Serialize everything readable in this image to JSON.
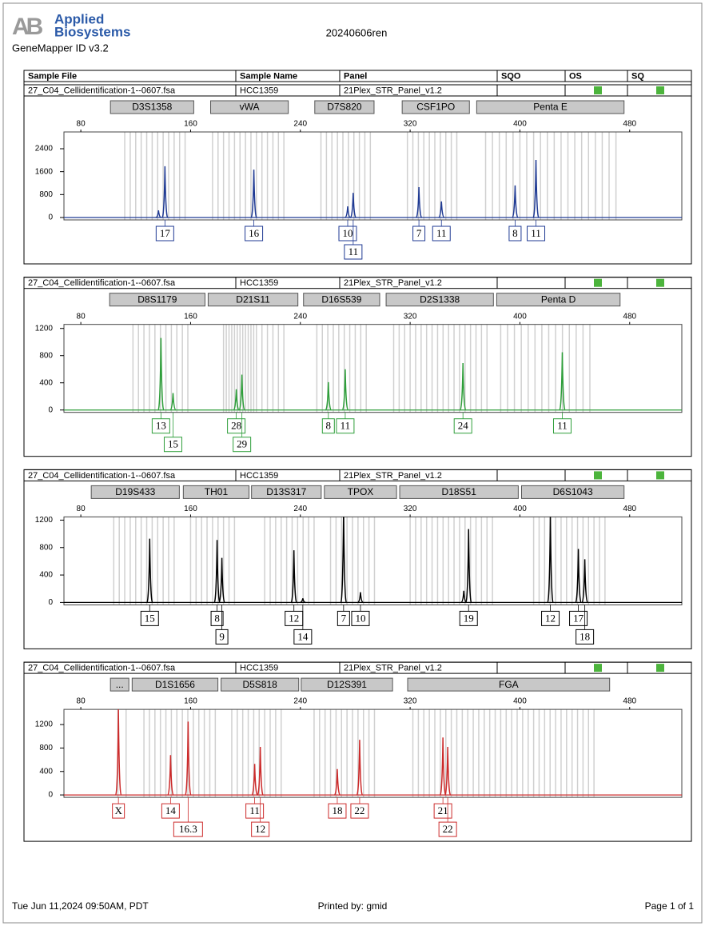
{
  "header": {
    "logo_mark": "AB",
    "logo_line1": "Applied",
    "logo_line2": "Biosystems",
    "software": "GeneMapper ID v3.2",
    "title": "20240606ren"
  },
  "table_header": {
    "columns": [
      "Sample File",
      "Sample Name",
      "Panel",
      "SQO",
      "OS",
      "SQ"
    ]
  },
  "chart_data": [
    {
      "type": "peak",
      "sample_file": "27_C04_Cellidentification-1--0607.fsa",
      "sample_name": "HCC1359",
      "panel": "21Plex_STR_Panel_v1.2",
      "os_flag": "#4cb43c",
      "sq_flag": "#4cb43c",
      "color": "#1f3a93",
      "xlim": [
        67.7,
        518
      ],
      "xticks": [
        80,
        160,
        240,
        320,
        400,
        480
      ],
      "ylim": [
        -84,
        2986
      ],
      "yticks": [
        0,
        800,
        1600,
        2400
      ],
      "markers": [
        {
          "name": "D3S1358",
          "start": 101.6,
          "end": 162.3,
          "bins": [
            112,
            116,
            120,
            124,
            128,
            132,
            136,
            140,
            144,
            148,
            152,
            156
          ]
        },
        {
          "name": "vWA",
          "start": 174.6,
          "end": 231.2,
          "bins": [
            176,
            180,
            184,
            188,
            192,
            196,
            200,
            204,
            208,
            212,
            216,
            220,
            224,
            228
          ]
        },
        {
          "name": "D7S820",
          "start": 250.5,
          "end": 293.7,
          "bins": [
            255,
            259,
            263,
            267,
            271,
            275,
            279,
            283,
            287,
            291
          ]
        },
        {
          "name": "CSF1PO",
          "start": 314.2,
          "end": 363.2,
          "bins": [
            318,
            322,
            326,
            330,
            334,
            338,
            342,
            346,
            350,
            354
          ]
        },
        {
          "name": "Penta E",
          "start": 368.5,
          "end": 475.9,
          "bins": [
            375,
            380,
            385,
            390,
            395,
            400,
            405,
            410,
            415,
            420,
            425,
            430,
            435,
            440,
            445,
            450,
            455,
            460,
            465,
            470
          ]
        }
      ],
      "peaks": [
        {
          "x": 136.6,
          "height": 250,
          "allele": null
        },
        {
          "x": 141.3,
          "height": 1790,
          "allele": "17"
        },
        {
          "x": 206.1,
          "height": 1670,
          "allele": "16"
        },
        {
          "x": 274.5,
          "height": 390,
          "allele": "10"
        },
        {
          "x": 278.5,
          "height": 860,
          "allele": "11"
        },
        {
          "x": 326.4,
          "height": 1060,
          "allele": "7"
        },
        {
          "x": 342.8,
          "height": 560,
          "allele": "11"
        },
        {
          "x": 396.5,
          "height": 1120,
          "allele": "8"
        },
        {
          "x": 411.7,
          "height": 2010,
          "allele": "11"
        }
      ]
    },
    {
      "type": "peak",
      "sample_file": "27_C04_Cellidentification-1--0607.fsa",
      "sample_name": "HCC1359",
      "panel": "21Plex_STR_Panel_v1.2",
      "os_flag": "#4cb43c",
      "sq_flag": "#4cb43c",
      "color": "#2e9e3a",
      "xlim": [
        67.7,
        518
      ],
      "xticks": [
        80,
        160,
        240,
        320,
        400,
        480
      ],
      "ylim": [
        -35,
        1259
      ],
      "yticks": [
        0,
        400,
        800,
        1200
      ],
      "markers": [
        {
          "name": "D8S1179",
          "start": 101,
          "end": 170.5,
          "bins": [
            118,
            122,
            126,
            130,
            134,
            138,
            142,
            146,
            150,
            154,
            158
          ]
        },
        {
          "name": "D21S11",
          "start": 172.8,
          "end": 238.2,
          "bins": [
            184,
            186,
            188,
            190,
            192,
            194,
            196,
            198,
            200,
            202,
            204,
            206,
            208,
            212,
            216,
            220,
            224,
            228
          ]
        },
        {
          "name": "D16S539",
          "start": 242.3,
          "end": 297.8,
          "bins": [
            252,
            256,
            260,
            264,
            268,
            272,
            276,
            280,
            284,
            288
          ]
        },
        {
          "name": "D2S1338",
          "start": 302.5,
          "end": 380.7,
          "bins": [
            308,
            312,
            316,
            320,
            324,
            328,
            332,
            336,
            340,
            344,
            348,
            352,
            356,
            360,
            364,
            368,
            372,
            376
          ]
        },
        {
          "name": "Penta D",
          "start": 383.1,
          "end": 473,
          "bins": [
            386,
            391,
            396,
            401,
            406,
            411,
            416,
            421,
            426,
            431,
            436,
            441,
            446,
            451
          ]
        }
      ],
      "peaks": [
        {
          "x": 138.4,
          "height": 1060,
          "allele": "13"
        },
        {
          "x": 147.2,
          "height": 250,
          "allele": "15"
        },
        {
          "x": 193.3,
          "height": 305,
          "allele": "28"
        },
        {
          "x": 197.4,
          "height": 520,
          "allele": "29"
        },
        {
          "x": 260.4,
          "height": 410,
          "allele": "8"
        },
        {
          "x": 272.7,
          "height": 600,
          "allele": "11"
        },
        {
          "x": 358.5,
          "height": 690,
          "allele": "24"
        },
        {
          "x": 430.9,
          "height": 850,
          "allele": "11"
        }
      ]
    },
    {
      "type": "peak",
      "sample_file": "27_C04_Cellidentification-1--0607.fsa",
      "sample_name": "HCC1359",
      "panel": "21Plex_STR_Panel_v1.2",
      "os_flag": "#4cb43c",
      "sq_flag": "#4cb43c",
      "color": "#000000",
      "xlim": [
        67.7,
        518
      ],
      "xticks": [
        80,
        160,
        240,
        320,
        400,
        480
      ],
      "ylim": [
        -35,
        1247
      ],
      "yticks": [
        0,
        400,
        800,
        1200
      ],
      "markers": [
        {
          "name": "D19S433",
          "start": 87.6,
          "end": 151.8,
          "bins": [
            104,
            108,
            112,
            116,
            120,
            124,
            128,
            132,
            136,
            140,
            144,
            148
          ]
        },
        {
          "name": "TH01",
          "start": 154.7,
          "end": 202.6,
          "bins": [
            160,
            164,
            168,
            172,
            176,
            180,
            184,
            188,
            192
          ]
        },
        {
          "name": "D13S317",
          "start": 204.4,
          "end": 255.2,
          "bins": [
            214,
            218,
            222,
            226,
            230,
            234,
            238,
            242,
            246,
            250
          ]
        },
        {
          "name": "TPOX",
          "start": 257.5,
          "end": 310.1,
          "bins": [
            262,
            266,
            270,
            274,
            278,
            282,
            286,
            290,
            294
          ]
        },
        {
          "name": "D18S51",
          "start": 312.4,
          "end": 398.8,
          "bins": [
            320,
            324,
            328,
            332,
            336,
            340,
            344,
            348,
            352,
            356,
            360,
            364,
            368,
            372,
            376,
            380
          ]
        },
        {
          "name": "D6S1043",
          "start": 401.2,
          "end": 475.9,
          "bins": [
            410,
            414,
            418,
            422,
            426,
            430,
            434,
            438,
            442,
            446,
            450,
            454,
            458,
            462
          ]
        }
      ],
      "peaks": [
        {
          "x": 130.2,
          "height": 930,
          "allele": "15"
        },
        {
          "x": 179.3,
          "height": 910,
          "allele": "8"
        },
        {
          "x": 182.8,
          "height": 650,
          "allele": "9"
        },
        {
          "x": 235.3,
          "height": 760,
          "allele": "12"
        },
        {
          "x": 241.8,
          "height": 60,
          "allele": "14"
        },
        {
          "x": 271.5,
          "height": 1400,
          "allele": "7"
        },
        {
          "x": 283.8,
          "height": 150,
          "allele": "10"
        },
        {
          "x": 359.1,
          "height": 170,
          "allele": null
        },
        {
          "x": 362.6,
          "height": 1070,
          "allele": "19"
        },
        {
          "x": 422.2,
          "height": 1300,
          "allele": "12"
        },
        {
          "x": 442.6,
          "height": 780,
          "allele": "17"
        },
        {
          "x": 447.3,
          "height": 630,
          "allele": "18"
        }
      ]
    },
    {
      "type": "peak",
      "sample_file": "27_C04_Cellidentification-1--0607.fsa",
      "sample_name": "HCC1359",
      "panel": "21Plex_STR_Panel_v1.2",
      "os_flag": "#4cb43c",
      "sq_flag": "#4cb43c",
      "color": "#cc2b2b",
      "xlim": [
        67.7,
        518
      ],
      "xticks": [
        80,
        160,
        240,
        320,
        400,
        480
      ],
      "ylim": [
        -41,
        1459
      ],
      "yticks": [
        0,
        400,
        800,
        1200
      ],
      "markers": [
        {
          "name": "...",
          "start": 101.6,
          "end": 115,
          "bins": [
            107,
            113
          ]
        },
        {
          "name": "D1S1656",
          "start": 117.4,
          "end": 179.9,
          "bins": [
            126,
            130,
            134,
            138,
            142,
            146,
            150,
            154,
            158,
            162,
            166,
            170,
            174,
            178
          ]
        },
        {
          "name": "D5S818",
          "start": 182.2,
          "end": 238.8,
          "bins": [
            190,
            194,
            198,
            202,
            206,
            210,
            214,
            218,
            222,
            226
          ]
        },
        {
          "name": "D12S391",
          "start": 240.6,
          "end": 307.2,
          "bins": [
            250,
            254,
            258,
            262,
            266,
            270,
            274,
            278,
            282,
            286,
            290,
            294
          ]
        },
        {
          "name": "FGA",
          "start": 318.2,
          "end": 465.4,
          "bins": [
            322,
            326,
            330,
            334,
            338,
            342,
            346,
            350,
            354,
            358,
            362,
            366,
            370,
            374,
            378,
            382,
            386,
            390,
            394,
            398,
            402,
            406,
            410,
            414,
            418,
            422,
            426,
            430,
            434,
            438,
            442,
            446,
            450,
            454
          ]
        }
      ],
      "peaks": [
        {
          "x": 107.4,
          "height": 1470,
          "allele": "X"
        },
        {
          "x": 145.4,
          "height": 680,
          "allele": "14"
        },
        {
          "x": 158.2,
          "height": 1250,
          "allele": "16.3"
        },
        {
          "x": 206.7,
          "height": 530,
          "allele": "11"
        },
        {
          "x": 210.8,
          "height": 820,
          "allele": "12"
        },
        {
          "x": 266.9,
          "height": 440,
          "allele": "18"
        },
        {
          "x": 283.2,
          "height": 940,
          "allele": "22"
        },
        {
          "x": 343.9,
          "height": 980,
          "allele": "21"
        },
        {
          "x": 347.4,
          "height": 820,
          "allele": "22"
        }
      ]
    }
  ],
  "footer": {
    "timestamp": "Tue Jun 11,2024 09:50AM, PDT",
    "printed_by": "Printed by: gmid",
    "page": "Page 1 of 1"
  }
}
